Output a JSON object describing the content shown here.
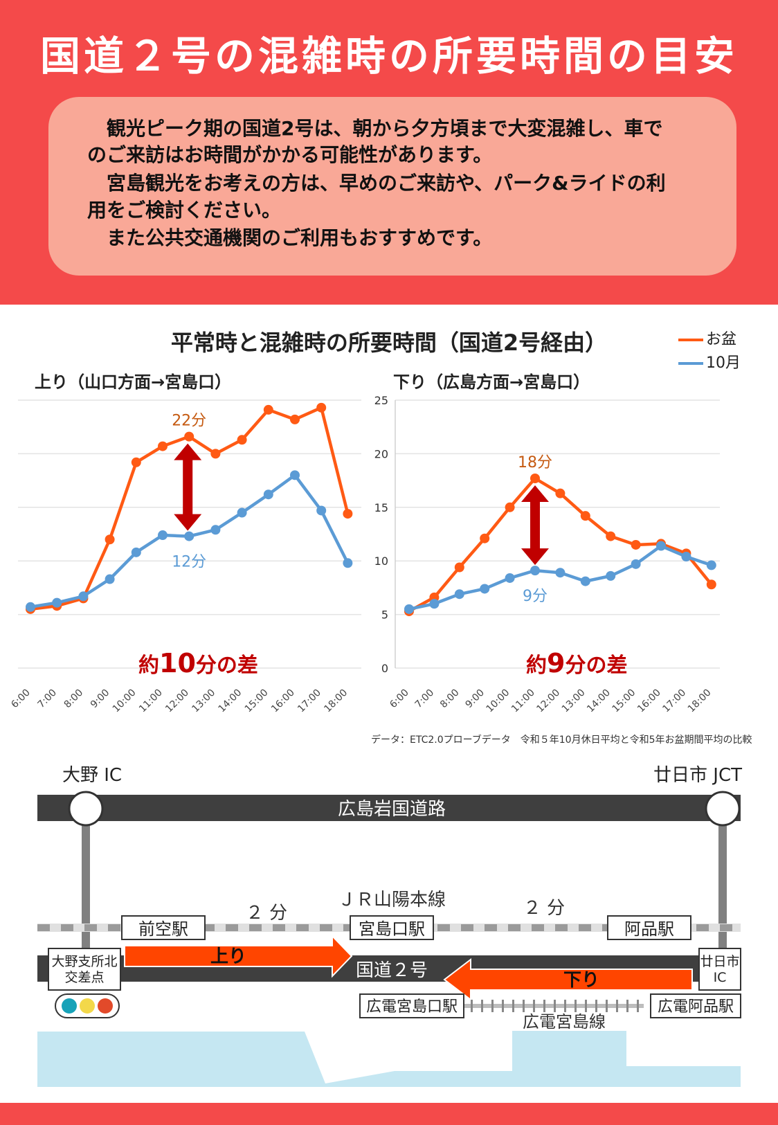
{
  "header": {
    "title": "国道２号の混雑時の所要時間の目安",
    "notice_lines": [
      "　観光ピーク期の国道2号は、朝から夕方頃まで大変混雑し、車で",
      "のご来訪はお時間がかかる可能性があります。",
      "　宮島観光をお考えの方は、早めのご来訪や、パーク&ライドの利",
      "用をご検討ください。",
      "　また公共交通機関のご利用もおすすめです。"
    ]
  },
  "chart_section": {
    "title": "平常時と混雑時の所要時間（国道2号経由）",
    "source": "データ：ETC2.0プローブデータ　令和５年10月休日平均と令和5年お盆期間平均の比較"
  },
  "legend": [
    {
      "name": "お盆",
      "color": "#ff5a14"
    },
    {
      "name": "10月",
      "color": "#5b9bd5"
    }
  ],
  "chart_data": [
    {
      "type": "line",
      "title": "上り（山口方面→宮島口）",
      "categories": [
        "6:00",
        "7:00",
        "8:00",
        "9:00",
        "10:00",
        "11:00",
        "12:00",
        "13:00",
        "14:00",
        "15:00",
        "16:00",
        "17:00",
        "18:00"
      ],
      "series": [
        {
          "name": "お盆",
          "values": [
            5.5,
            5.8,
            6.5,
            12,
            19.2,
            20.7,
            21.6,
            20,
            21.3,
            24.1,
            23.2,
            24.3,
            14.4
          ]
        },
        {
          "name": "10月",
          "values": [
            5.7,
            6.1,
            6.7,
            8.3,
            10.8,
            12.4,
            12.3,
            12.9,
            14.5,
            16.2,
            18,
            14.7,
            9.8
          ]
        }
      ],
      "ylim": [
        0,
        25
      ],
      "grid": true,
      "annotations": {
        "upper_label": "22分",
        "lower_label": "12分",
        "diff_number": "10",
        "diff_prefix": "約",
        "diff_suffix": "分の差"
      }
    },
    {
      "type": "line",
      "title": "下り（広島方面→宮島口）",
      "categories": [
        "6:00",
        "7:00",
        "8:00",
        "9:00",
        "10:00",
        "11:00",
        "12:00",
        "13:00",
        "14:00",
        "15:00",
        "16:00",
        "17:00",
        "18:00"
      ],
      "series": [
        {
          "name": "お盆",
          "values": [
            5.3,
            6.6,
            9.4,
            12.1,
            15,
            17.7,
            16.3,
            14.2,
            12.3,
            11.5,
            11.6,
            10.7,
            7.8
          ]
        },
        {
          "name": "10月",
          "values": [
            5.5,
            6,
            6.9,
            7.4,
            8.4,
            9.1,
            8.9,
            8.1,
            8.6,
            9.7,
            11.4,
            10.4,
            9.6
          ]
        }
      ],
      "ylim": [
        0,
        25
      ],
      "yticks": [
        "0",
        "5",
        "10",
        "15",
        "20",
        "25"
      ],
      "grid": true,
      "annotations": {
        "upper_label": "18分",
        "lower_label": "9分",
        "diff_number": "9",
        "diff_prefix": "約",
        "diff_suffix": "分の差"
      }
    }
  ],
  "map": {
    "expressway": "広島岩国道路",
    "ic_left": "大野 IC",
    "ic_right": "廿日市 JCT",
    "jr_line": "ＪＲ山陽本線",
    "time_left": "２ 分",
    "time_right": "２ 分",
    "stations": [
      "前空駅",
      "宮島口駅",
      "阿品駅"
    ],
    "national_road": "国道２号",
    "arrow_up": "上り",
    "arrow_down": "下り",
    "start_box": [
      "大野支所北",
      "交差点"
    ],
    "end_box": [
      "廿日市",
      "IC"
    ],
    "hiroden_stations": [
      "広電宮島口駅",
      "広電阿品駅"
    ],
    "hiroden_line": "広電宮島線"
  }
}
